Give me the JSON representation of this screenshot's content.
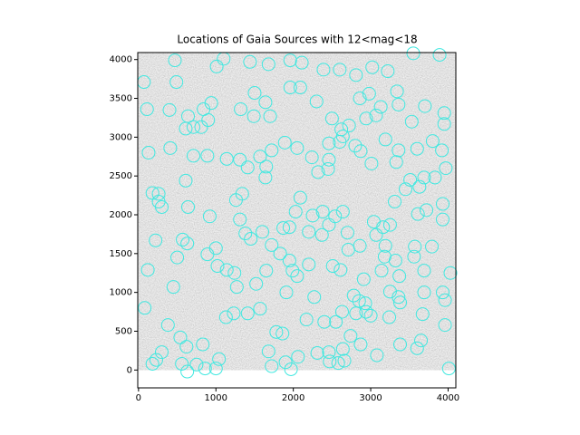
{
  "chart_data": {
    "type": "scatter",
    "title": "Locations of Gaia Sources with 12<mag<18",
    "color": "#40e8e0",
    "xlim": [
      -10,
      4100
    ],
    "ylim": [
      -230,
      4090
    ],
    "xticks": [
      0,
      1000,
      2000,
      3000,
      4000
    ],
    "yticks": [
      0,
      500,
      1000,
      1500,
      2000,
      2500,
      3000,
      3500,
      4000
    ],
    "x": [
      1100,
      1440,
      1680,
      1960,
      2110,
      2390,
      2600,
      2810,
      3020,
      3220,
      3550,
      3890,
      470,
      1010,
      70,
      490,
      110,
      400,
      940,
      840,
      1500,
      1640,
      1320,
      1490,
      1700,
      1960,
      2090,
      2300,
      2500,
      2620,
      2720,
      2640,
      2860,
      2980,
      2940,
      3070,
      3130,
      3360,
      3340,
      3700,
      3530,
      3950,
      3950,
      640,
      710,
      610,
      810,
      900,
      410,
      130,
      890,
      710,
      1140,
      1310,
      1410,
      1570,
      1650,
      1640,
      1720,
      1890,
      2050,
      2240,
      2460,
      2450,
      2320,
      2460,
      2600,
      2800,
      2870,
      3010,
      3190,
      3360,
      3330,
      3600,
      3800,
      3920,
      3970,
      3830,
      3690,
      3510,
      3450,
      3630,
      610,
      640,
      260,
      180,
      260,
      300,
      920,
      1310,
      1340,
      1260,
      2090,
      2030,
      2250,
      2380,
      2540,
      2640,
      2460,
      3040,
      3160,
      3250,
      3310,
      3610,
      3720,
      3930,
      3930,
      220,
      570,
      630,
      1000,
      1380,
      1450,
      1600,
      1870,
      1950,
      1720,
      1830,
      2200,
      2370,
      2700,
      2710,
      2860,
      3070,
      3190,
      3180,
      3320,
      3560,
      3570,
      3790,
      120,
      500,
      890,
      1020,
      1140,
      1240,
      1650,
      1950,
      1990,
      2050,
      2200,
      2510,
      2610,
      2910,
      3140,
      3370,
      3690,
      4030,
      450,
      1270,
      1520,
      1910,
      2270,
      2780,
      2850,
      2930,
      2940,
      3250,
      3360,
      3380,
      3690,
      3930,
      3960,
      80,
      1130,
      1230,
      1410,
      1570,
      2170,
      2400,
      2550,
      2630,
      2810,
      3000,
      3240,
      3670,
      3960,
      380,
      540,
      620,
      300,
      830,
      1040,
      1680,
      1860,
      1780,
      2310,
      2460,
      2640,
      2740,
      2870,
      2580,
      2660,
      2060,
      3080,
      3600,
      3650,
      3380,
      180,
      230,
      560,
      630,
      750,
      860,
      1000,
      1720,
      1970,
      1900,
      4010,
      2470
    ],
    "values": [
      4010,
      3970,
      3940,
      3990,
      3960,
      3870,
      3870,
      3800,
      3900,
      3850,
      4080,
      4060,
      3990,
      3910,
      3710,
      3710,
      3360,
      3350,
      3440,
      3360,
      3570,
      3450,
      3360,
      3270,
      3270,
      3640,
      3640,
      3460,
      3240,
      3100,
      3150,
      3010,
      3500,
      3560,
      3240,
      3280,
      3390,
      3420,
      3590,
      3400,
      3200,
      3310,
      3170,
      3270,
      3130,
      3110,
      3130,
      3220,
      2860,
      2800,
      2760,
      2760,
      2720,
      2710,
      2610,
      2750,
      2620,
      2480,
      2830,
      2930,
      2860,
      2740,
      2710,
      2590,
      2550,
      2920,
      2940,
      2890,
      2820,
      2660,
      2970,
      2830,
      2680,
      2850,
      2950,
      2830,
      2600,
      2480,
      2480,
      2450,
      2330,
      2360,
      2440,
      2100,
      2270,
      2280,
      2170,
      2100,
      1980,
      1940,
      2270,
      2190,
      2220,
      2040,
      1990,
      2040,
      1980,
      2040,
      1870,
      1910,
      1840,
      1870,
      2170,
      2010,
      2060,
      1940,
      2140,
      1670,
      1680,
      1630,
      1570,
      1760,
      1690,
      1780,
      1830,
      1840,
      1610,
      1500,
      1780,
      1740,
      1770,
      1550,
      1600,
      1740,
      1600,
      1460,
      1410,
      1460,
      1590,
      1590,
      1290,
      1450,
      1490,
      1340,
      1290,
      1250,
      1280,
      1410,
      1280,
      1210,
      1360,
      1340,
      1290,
      1170,
      1280,
      1210,
      1280,
      1250,
      1070,
      1070,
      1110,
      1000,
      940,
      960,
      890,
      860,
      750,
      1010,
      940,
      870,
      1000,
      1000,
      900,
      800,
      680,
      730,
      730,
      790,
      650,
      620,
      620,
      750,
      730,
      700,
      680,
      720,
      580,
      580,
      420,
      300,
      230,
      330,
      140,
      240,
      470,
      490,
      220,
      230,
      270,
      440,
      330,
      90,
      120,
      170,
      190,
      280,
      380,
      330,
      80,
      130,
      80,
      -20,
      70,
      20,
      20,
      50,
      10,
      100,
      20,
      110
    ]
  }
}
